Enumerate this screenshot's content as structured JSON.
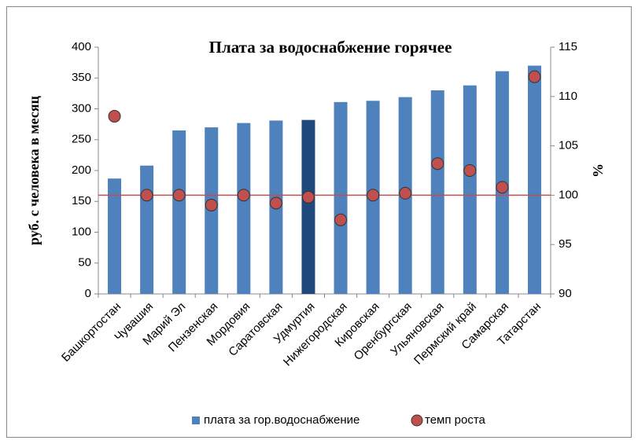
{
  "chart_data": {
    "type": "bar_scatter",
    "title": "Плата за водоснабжение горячее",
    "y_label": "руб. с человека в месяц",
    "y2_label": "%",
    "categories": [
      "Башкортостан",
      "Чувашия",
      "Марий Эл",
      "Пензенская",
      "Мордовия",
      "Саратовская",
      "Удмуртия",
      "Нижегородская",
      "Кировская",
      "Оренбургская",
      "Ульяновская",
      "Пермский край",
      "Самарская",
      "Татарстан"
    ],
    "series": [
      {
        "name": "плата за гор.водоснабжение",
        "color": "#4f81bd",
        "colors": [
          "#4f81bd",
          "#4f81bd",
          "#4f81bd",
          "#4f81bd",
          "#4f81bd",
          "#4f81bd",
          "#1f497d",
          "#4f81bd",
          "#4f81bd",
          "#4f81bd",
          "#4f81bd",
          "#4f81bd",
          "#4f81bd",
          "#4f81bd"
        ],
        "values": [
          187,
          208,
          265,
          270,
          277,
          281,
          282,
          311,
          313,
          319,
          330,
          338,
          361,
          370
        ]
      },
      {
        "name": "темп роста",
        "color": "#c0504d",
        "axis": "y2",
        "values": [
          108,
          100,
          100,
          99,
          100,
          99.2,
          99.8,
          97.5,
          100,
          100.2,
          103.2,
          102.5,
          100.8,
          112
        ]
      }
    ],
    "ylim": [
      0,
      400
    ],
    "yticks": [
      0,
      50,
      100,
      150,
      200,
      250,
      300,
      350,
      400
    ],
    "y2lim": [
      90,
      115
    ],
    "y2ticks": [
      90,
      95,
      100,
      105,
      110,
      115
    ],
    "y2_hline": 100,
    "hline_color": "#c0504d",
    "legend": "bottom"
  }
}
